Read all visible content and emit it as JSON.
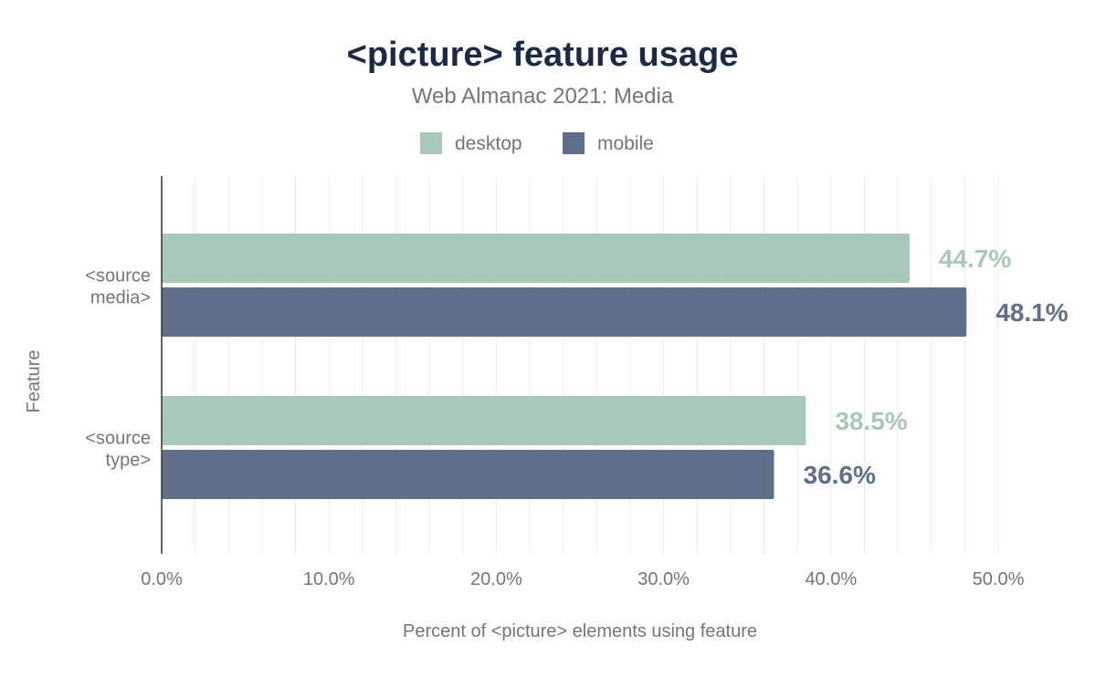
{
  "chart_data": {
    "type": "bar",
    "orientation": "horizontal",
    "title": "<picture> feature usage",
    "subtitle": "Web Almanac 2021: Media",
    "xlabel": "Percent of <picture> elements using feature",
    "ylabel": "Feature",
    "categories": [
      [
        "<source",
        "media>"
      ],
      [
        "<source",
        "type>"
      ]
    ],
    "series": [
      {
        "name": "desktop",
        "color": "#a8c9b8",
        "values": [
          44.7,
          38.5
        ],
        "labels": [
          "44.7%",
          "38.5%"
        ]
      },
      {
        "name": "mobile",
        "color": "#5f6f8a",
        "values": [
          48.1,
          36.6
        ],
        "labels": [
          "48.1%",
          "36.6%"
        ]
      }
    ],
    "xlim": [
      0,
      50
    ],
    "xticks": [
      0,
      10,
      20,
      30,
      40,
      50
    ],
    "xtick_labels": [
      "0.0%",
      "10.0%",
      "20.0%",
      "30.0%",
      "40.0%",
      "50.0%"
    ],
    "grid": true,
    "legend_position": "top-center",
    "title_color": "#1a2b49"
  }
}
